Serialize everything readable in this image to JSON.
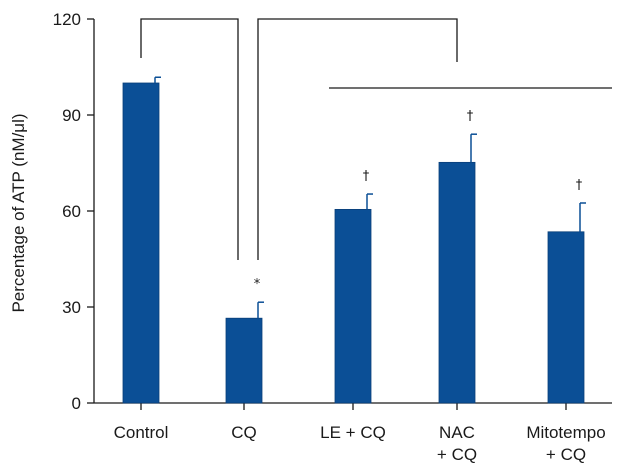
{
  "chart_data": {
    "type": "bar",
    "title": "",
    "xlabel": "",
    "ylabel": "Percentage of ATP (nM/μl)",
    "ylim": [
      0,
      120
    ],
    "yticks": [
      "0",
      "30",
      "60",
      "90",
      "120"
    ],
    "categories": [
      [
        "Control"
      ],
      [
        "CQ"
      ],
      [
        "LE + CQ"
      ],
      [
        "NAC",
        "+ CQ"
      ],
      [
        "Mitotempo",
        "+ CQ"
      ]
    ],
    "values": [
      100,
      26.5,
      60.5,
      75.2,
      53.5
    ],
    "errors": [
      1.8,
      5.0,
      4.8,
      8.8,
      9.0
    ],
    "significance": [
      "",
      "*",
      "†",
      "†",
      "†"
    ],
    "bar_color": "#0b4f96",
    "grid": false,
    "legend": "none",
    "comparisons": [
      {
        "from": 0,
        "to": 1,
        "note": "Control vs CQ bracket"
      },
      {
        "from": 1,
        "to": 3,
        "note": "CQ vs treatment groups bracket"
      }
    ]
  }
}
